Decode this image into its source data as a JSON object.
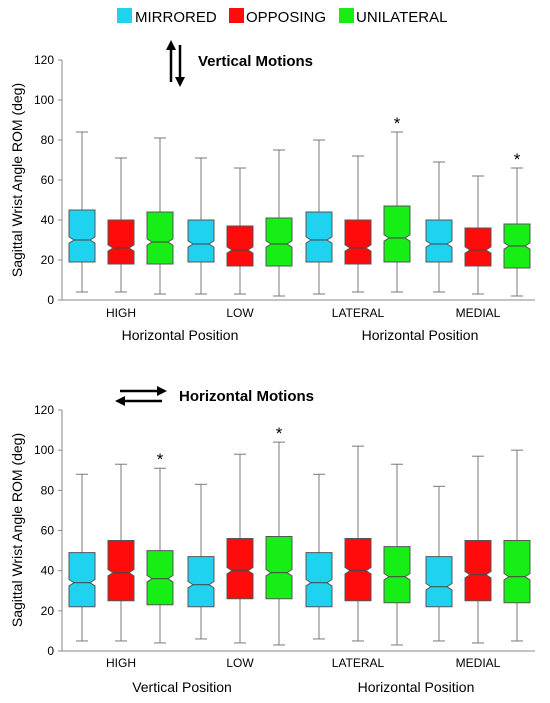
{
  "legend": [
    {
      "label": "MIRRORED",
      "color": "#1fd3f0"
    },
    {
      "label": "OPPOSING",
      "color": "#ff0b0b"
    },
    {
      "label": "UNILATERAL",
      "color": "#16ee16"
    }
  ],
  "chart_data": [
    {
      "type": "boxplot",
      "title": "Vertical Motions",
      "title_icon": "vertical-arrows-icon",
      "ylabel": "Sagittal Wrist Angle ROM (deg)",
      "ylim": [
        0,
        120
      ],
      "yticks": [
        0,
        20,
        40,
        60,
        80,
        100,
        120
      ],
      "categories": [
        "HIGH",
        "LOW",
        "LATERAL",
        "MEDIAL"
      ],
      "group_labels": [
        "Horizontal Position",
        "Horizontal Position"
      ],
      "series": [
        {
          "name": "MIRRORED",
          "boxes": [
            {
              "min": 4,
              "q1": 19,
              "median": 30,
              "q3": 45,
              "max": 84,
              "star": false
            },
            {
              "min": 3,
              "q1": 19,
              "median": 28,
              "q3": 40,
              "max": 71,
              "star": false
            },
            {
              "min": 3,
              "q1": 19,
              "median": 30,
              "q3": 44,
              "max": 80,
              "star": false
            },
            {
              "min": 4,
              "q1": 19,
              "median": 28,
              "q3": 40,
              "max": 69,
              "star": false
            }
          ]
        },
        {
          "name": "OPPOSING",
          "boxes": [
            {
              "min": 4,
              "q1": 18,
              "median": 26,
              "q3": 40,
              "max": 71,
              "star": false
            },
            {
              "min": 3,
              "q1": 17,
              "median": 25,
              "q3": 37,
              "max": 66,
              "star": false
            },
            {
              "min": 4,
              "q1": 18,
              "median": 26,
              "q3": 40,
              "max": 72,
              "star": false
            },
            {
              "min": 3,
              "q1": 17,
              "median": 25,
              "q3": 36,
              "max": 62,
              "star": false
            }
          ]
        },
        {
          "name": "UNILATERAL",
          "boxes": [
            {
              "min": 3,
              "q1": 18,
              "median": 29,
              "q3": 44,
              "max": 81,
              "star": false
            },
            {
              "min": 2,
              "q1": 17,
              "median": 28,
              "q3": 41,
              "max": 75,
              "star": false
            },
            {
              "min": 4,
              "q1": 19,
              "median": 31,
              "q3": 47,
              "max": 84,
              "star": true
            },
            {
              "min": 2,
              "q1": 16,
              "median": 27,
              "q3": 38,
              "max": 66,
              "star": true
            }
          ]
        }
      ]
    },
    {
      "type": "boxplot",
      "title": "Horizontal Motions",
      "title_icon": "horizontal-arrows-icon",
      "ylabel": "Sagittal Wrist Angle ROM (deg)",
      "ylim": [
        0,
        120
      ],
      "yticks": [
        0,
        20,
        40,
        60,
        80,
        100,
        120
      ],
      "categories": [
        "HIGH",
        "LOW",
        "LATERAL",
        "MEDIAL"
      ],
      "group_labels": [
        "Vertical Position",
        "Horizontal Position"
      ],
      "series": [
        {
          "name": "MIRRORED",
          "boxes": [
            {
              "min": 5,
              "q1": 22,
              "median": 34,
              "q3": 49,
              "max": 88,
              "star": false
            },
            {
              "min": 6,
              "q1": 22,
              "median": 33,
              "q3": 47,
              "max": 83,
              "star": false
            },
            {
              "min": 6,
              "q1": 22,
              "median": 34,
              "q3": 49,
              "max": 88,
              "star": false
            },
            {
              "min": 5,
              "q1": 22,
              "median": 32,
              "q3": 47,
              "max": 82,
              "star": false
            }
          ]
        },
        {
          "name": "OPPOSING",
          "boxes": [
            {
              "min": 5,
              "q1": 25,
              "median": 39,
              "q3": 55,
              "max": 93,
              "star": false
            },
            {
              "min": 4,
              "q1": 26,
              "median": 40,
              "q3": 56,
              "max": 98,
              "star": false
            },
            {
              "min": 5,
              "q1": 25,
              "median": 40,
              "q3": 56,
              "max": 102,
              "star": false
            },
            {
              "min": 4,
              "q1": 25,
              "median": 38,
              "q3": 55,
              "max": 97,
              "star": false
            }
          ]
        },
        {
          "name": "UNILATERAL",
          "boxes": [
            {
              "min": 4,
              "q1": 23,
              "median": 36,
              "q3": 50,
              "max": 91,
              "star": true
            },
            {
              "min": 3,
              "q1": 26,
              "median": 39,
              "q3": 57,
              "max": 104,
              "star": true
            },
            {
              "min": 3,
              "q1": 24,
              "median": 37,
              "q3": 52,
              "max": 93,
              "star": false
            },
            {
              "min": 5,
              "q1": 24,
              "median": 37,
              "q3": 55,
              "max": 100,
              "star": false
            }
          ]
        }
      ]
    }
  ]
}
